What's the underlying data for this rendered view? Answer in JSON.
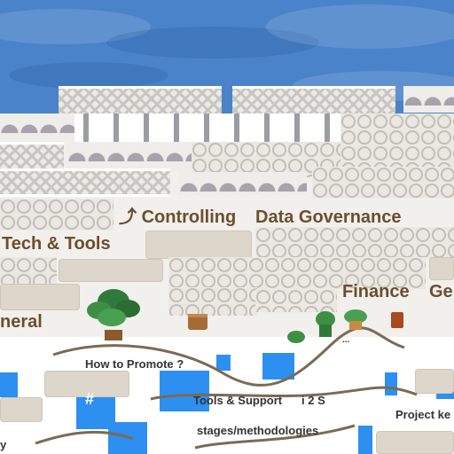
{
  "rooms": {
    "controlling": "Controlling",
    "data_governance": "Data Governance",
    "tech_tools": "Tech & Tools",
    "finance": "Finance",
    "finance_cut": "Ge",
    "general": "neral",
    "how_to_promote": "How to Promote ?",
    "tools_support": "Tools & Support",
    "stages": "stages/methodologies",
    "project": "Project ke",
    "cut_y": "y",
    "cut_fragment": "i 2 S",
    "fragment_small": "..."
  },
  "tile_badge": "#",
  "colors": {
    "water": "#4a83c9",
    "label_brown": "#6b4e2e",
    "tile_blue": "#2d8ff0"
  }
}
